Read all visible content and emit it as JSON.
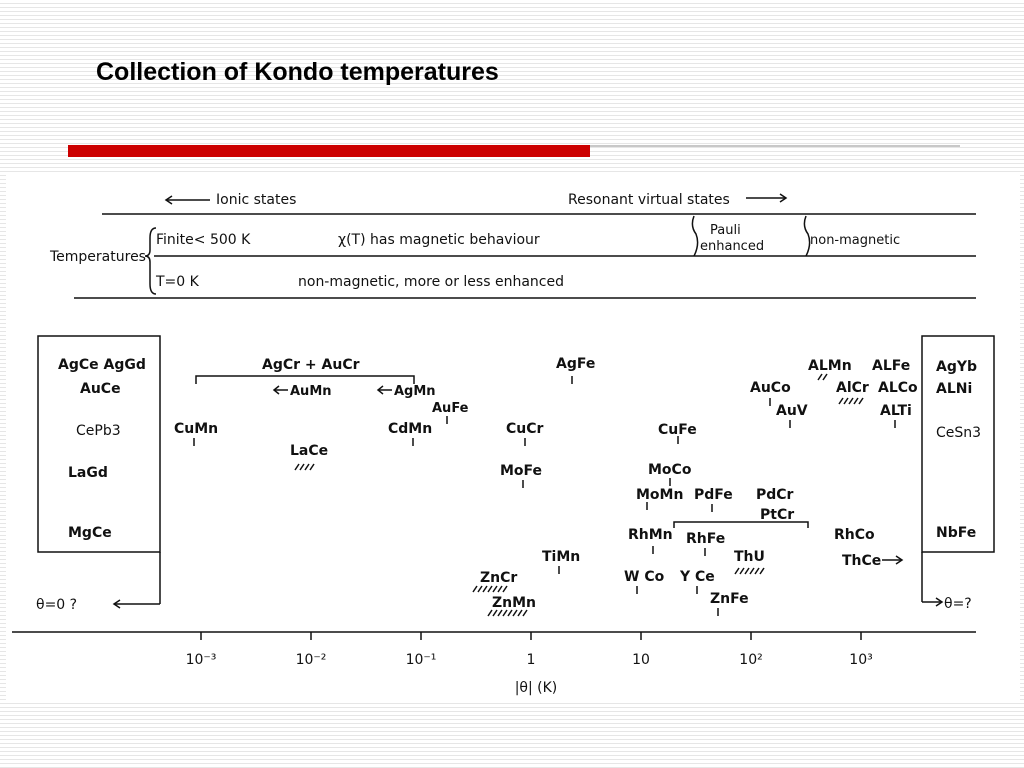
{
  "slide": {
    "title": "Collection of Kondo temperatures"
  },
  "figure": {
    "header": {
      "ionic_states": "Ionic states",
      "resonant_states": "Resonant virtual states",
      "temperatures": "Temperatures",
      "finite_label": "Finite< 500 K",
      "chi_label": "χ(T) has magnetic behaviour",
      "pauli_label_1": "Pauli",
      "pauli_label_2": "enhanced",
      "nonmagnetic_label": "non-magnetic",
      "zero_label": "T=0 K",
      "zero_desc": "non-magnetic, more or less enhanced"
    },
    "left_box": [
      "AgCe AgGd",
      "AuCe",
      "CePb3",
      "LaGd",
      "MgCe"
    ],
    "right_box": [
      "AgYb",
      "ALNi",
      "CeSn3",
      "NbFe"
    ],
    "theta_left": "θ=0 ?",
    "theta_right": "θ=?",
    "alloys": {
      "agcr_aucr": "AgCr + AuCr",
      "aumn": "AuMn",
      "agmn": "AgMn",
      "cumn": "CuMn",
      "lace": "LaCe",
      "cdmn": "CdMn",
      "aufe": "AuFe",
      "agfe": "AgFe",
      "cucr": "CuCr",
      "mofe": "MoFe",
      "timn": "TiMn",
      "zncr": "ZnCr",
      "znmn": "ZnMn",
      "cufe": "CuFe",
      "moco": "MoCo",
      "momn": "MoMn",
      "pdfe": "PdFe",
      "pdcr": "PdCr",
      "ptcr": "PtCr",
      "rhmn": "RhMn",
      "rhfe": "RhFe",
      "thu": "ThU",
      "wco": "W Co",
      "yce": "Y Ce",
      "znfe": "ZnFe",
      "auco": "AuCo",
      "auv": "AuV",
      "almn": "ALMn",
      "alcr": "AlCr",
      "alfe": "ALFe",
      "alco": "ALCo",
      "alti": "ALTi",
      "rhco": "RhCo",
      "thce": "ThCe"
    },
    "axis": {
      "ticks": [
        "10⁻³",
        "10⁻²",
        "10⁻¹",
        "1",
        "10",
        "10²",
        "10³"
      ],
      "label": "|θ| (K)"
    }
  }
}
